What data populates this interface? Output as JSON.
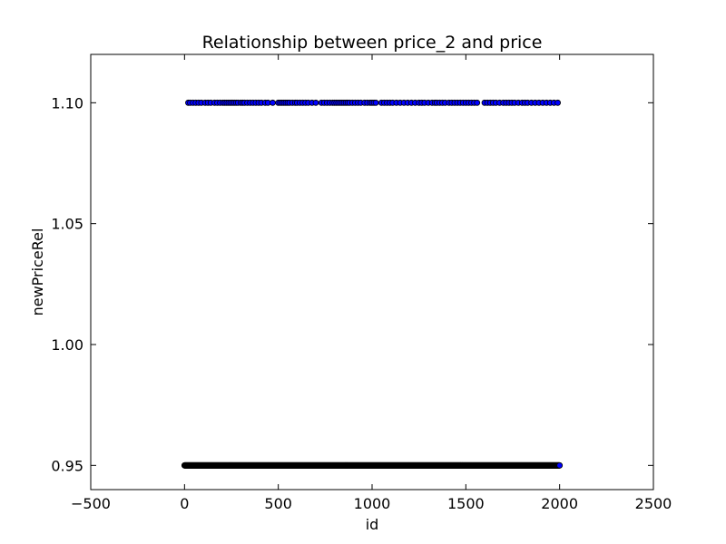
{
  "chart_data": {
    "type": "scatter",
    "title": "Relationship between price_2 and price",
    "xlabel": "id",
    "ylabel": "newPriceRel",
    "xlim": [
      -500,
      2500
    ],
    "ylim": [
      0.94,
      1.12
    ],
    "x_ticks": [
      -500,
      0,
      500,
      1000,
      1500,
      2000,
      2500
    ],
    "x_tick_labels": [
      "−500",
      "0",
      "500",
      "1000",
      "1500",
      "2000",
      "2500"
    ],
    "y_ticks": [
      0.95,
      1.0,
      1.05,
      1.1
    ],
    "y_tick_labels": [
      "0.95",
      "1.00",
      "1.05",
      "1.10"
    ],
    "grid": false,
    "legend": "none",
    "marker_fill": "#0000ff",
    "marker_edge": "#000000",
    "series": [
      {
        "y": 0.95,
        "x": [
          0,
          2000
        ],
        "x_step": 1,
        "note_dense": true
      },
      {
        "y": 1.1,
        "x": [
          20,
          30,
          45,
          60,
          75,
          90,
          110,
          125,
          140,
          160,
          175,
          190,
          205,
          215,
          225,
          235,
          245,
          255,
          265,
          275,
          285,
          300,
          310,
          320,
          335,
          350,
          365,
          380,
          395,
          410,
          430,
          445,
          470,
          500,
          510,
          520,
          530,
          540,
          550,
          560,
          575,
          590,
          600,
          615,
          630,
          645,
          660,
          680,
          700,
          730,
          745,
          760,
          775,
          790,
          800,
          810,
          820,
          830,
          840,
          850,
          860,
          870,
          880,
          895,
          910,
          925,
          940,
          960,
          975,
          990,
          1000,
          1010,
          1020,
          1050,
          1065,
          1080,
          1095,
          1110,
          1130,
          1150,
          1170,
          1190,
          1210,
          1230,
          1250,
          1265,
          1280,
          1300,
          1320,
          1335,
          1345,
          1360,
          1375,
          1390,
          1410,
          1425,
          1440,
          1455,
          1470,
          1485,
          1500,
          1515,
          1530,
          1545,
          1560,
          1600,
          1615,
          1630,
          1645,
          1660,
          1680,
          1700,
          1715,
          1730,
          1745,
          1760,
          1780,
          1800,
          1815,
          1830,
          1850,
          1870,
          1890,
          1910,
          1930,
          1950,
          1970,
          1990
        ]
      }
    ]
  }
}
